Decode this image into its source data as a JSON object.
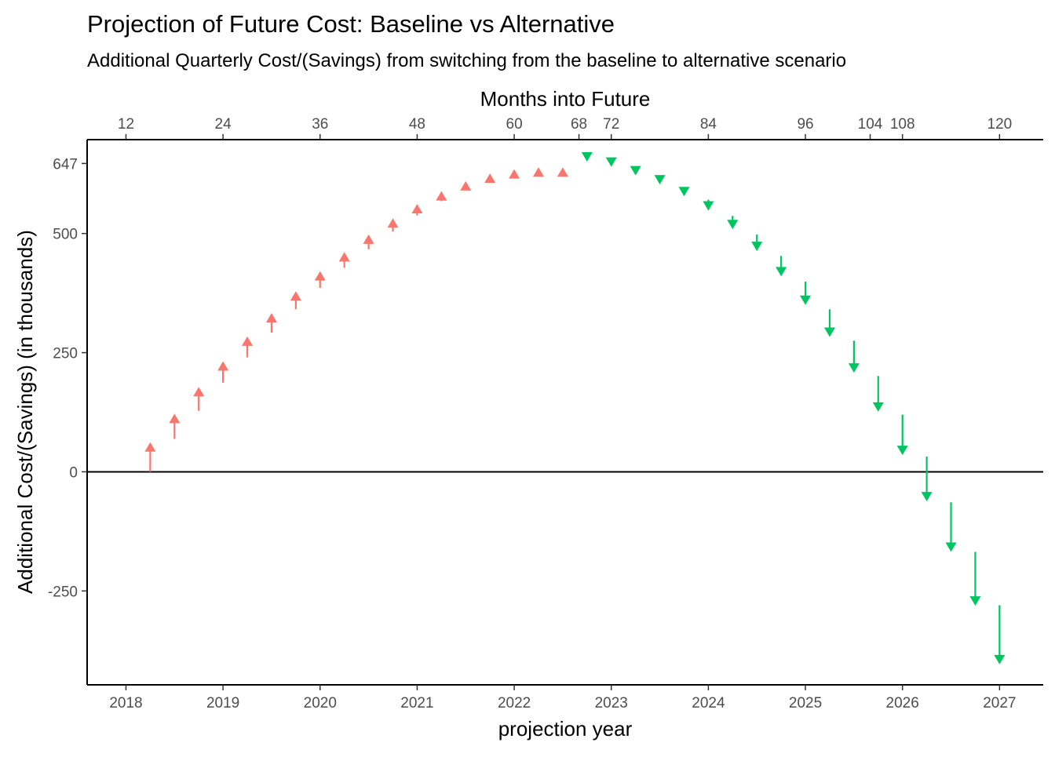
{
  "colors": {
    "increase": "#F8766D",
    "decrease": "#00C561",
    "axis": "#000000",
    "tick_text": "#4D4D4D"
  },
  "chart_data": {
    "type": "arrow-segment",
    "title": "Projection of Future Cost: Baseline vs Alternative",
    "subtitle": "Additional Quarterly Cost/(Savings) from switching from the baseline to alternative scenario",
    "xlabel": "projection year",
    "ylabel": "Additional Cost/(Savings) (in thousands)",
    "top_xlabel": "Months into Future",
    "xlim": [
      2017.6,
      2027.45
    ],
    "ylim": [
      -447,
      697
    ],
    "x_ticks": [
      2018,
      2019,
      2020,
      2021,
      2022,
      2023,
      2024,
      2025,
      2026,
      2027
    ],
    "x_tick_labels": [
      "2018",
      "2019",
      "2020",
      "2021",
      "2022",
      "2023",
      "2024",
      "2025",
      "2026",
      "2027"
    ],
    "y_ticks": [
      -250,
      0,
      250,
      500,
      647
    ],
    "y_tick_labels": [
      "-250",
      "0",
      "250",
      "500",
      "647"
    ],
    "top_ticks": [
      {
        "year": 2018.0,
        "label": "12"
      },
      {
        "year": 2019.0,
        "label": "24"
      },
      {
        "year": 2020.0,
        "label": "36"
      },
      {
        "year": 2021.0,
        "label": "48"
      },
      {
        "year": 2022.0,
        "label": "60"
      },
      {
        "year": 2022.667,
        "label": "68"
      },
      {
        "year": 2023.0,
        "label": "72"
      },
      {
        "year": 2024.0,
        "label": "84"
      },
      {
        "year": 2025.0,
        "label": "96"
      },
      {
        "year": 2025.667,
        "label": "104"
      },
      {
        "year": 2026.0,
        "label": "108"
      },
      {
        "year": 2027.0,
        "label": "120"
      }
    ],
    "hline_y": 0,
    "series": [
      {
        "direction": "increase",
        "segments": [
          {
            "x": 2018.25,
            "from": 0,
            "to": 62
          },
          {
            "x": 2018.5,
            "from": 69,
            "to": 122
          },
          {
            "x": 2018.75,
            "from": 128,
            "to": 178
          },
          {
            "x": 2019.0,
            "from": 187,
            "to": 232
          },
          {
            "x": 2019.25,
            "from": 240,
            "to": 284
          },
          {
            "x": 2019.5,
            "from": 292,
            "to": 333
          },
          {
            "x": 2019.75,
            "from": 341,
            "to": 379
          },
          {
            "x": 2020.0,
            "from": 386,
            "to": 421
          },
          {
            "x": 2020.25,
            "from": 428,
            "to": 461
          },
          {
            "x": 2020.5,
            "from": 467,
            "to": 498
          },
          {
            "x": 2020.75,
            "from": 504,
            "to": 532
          },
          {
            "x": 2021.0,
            "from": 538,
            "to": 562
          },
          {
            "x": 2021.25,
            "from": 568,
            "to": 589
          },
          {
            "x": 2021.5,
            "from": 595,
            "to": 610
          },
          {
            "x": 2021.75,
            "from": 616,
            "to": 626
          },
          {
            "x": 2022.0,
            "from": 632,
            "to": 635
          },
          {
            "x": 2022.25,
            "from": 641,
            "to": 639
          },
          {
            "x": 2022.5,
            "from": 642,
            "to": 639
          }
        ]
      },
      {
        "direction": "decrease",
        "segments": [
          {
            "x": 2022.75,
            "from": 639,
            "to": 651
          },
          {
            "x": 2023.0,
            "from": 638,
            "to": 640
          },
          {
            "x": 2023.25,
            "from": 633,
            "to": 622
          },
          {
            "x": 2023.5,
            "from": 613,
            "to": 603
          },
          {
            "x": 2023.75,
            "from": 594,
            "to": 578
          },
          {
            "x": 2024.0,
            "from": 571,
            "to": 548
          },
          {
            "x": 2024.25,
            "from": 537,
            "to": 509
          },
          {
            "x": 2024.5,
            "from": 498,
            "to": 463
          },
          {
            "x": 2024.75,
            "from": 453,
            "to": 410
          },
          {
            "x": 2025.0,
            "from": 399,
            "to": 350
          },
          {
            "x": 2025.25,
            "from": 341,
            "to": 283
          },
          {
            "x": 2025.5,
            "from": 275,
            "to": 208
          },
          {
            "x": 2025.75,
            "from": 201,
            "to": 126
          },
          {
            "x": 2026.0,
            "from": 120,
            "to": 35
          },
          {
            "x": 2026.25,
            "from": 32,
            "to": -62
          },
          {
            "x": 2026.5,
            "from": -64,
            "to": -168
          },
          {
            "x": 2026.75,
            "from": -168,
            "to": -281
          },
          {
            "x": 2027.0,
            "from": -280,
            "to": -404
          }
        ]
      }
    ]
  }
}
